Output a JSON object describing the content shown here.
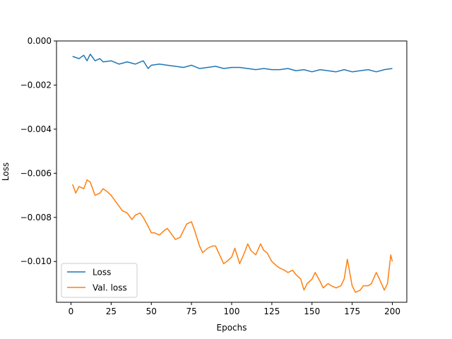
{
  "chart_data": {
    "type": "line",
    "title": "",
    "xlabel": "Epochs",
    "ylabel": "Loss",
    "xlim": [
      -9,
      209
    ],
    "ylim": [
      -0.01185,
      0.0
    ],
    "xticks": [
      0,
      25,
      50,
      75,
      100,
      125,
      150,
      175,
      200
    ],
    "xtick_labels": [
      "0",
      "25",
      "50",
      "75",
      "100",
      "125",
      "150",
      "175",
      "200"
    ],
    "yticks": [
      0.0,
      -0.002,
      -0.004,
      -0.006,
      -0.008,
      -0.01
    ],
    "ytick_labels": [
      "0.000",
      "−0.002",
      "−0.004",
      "−0.006",
      "−0.008",
      "−0.010"
    ],
    "grid": false,
    "legend_position": "lower-left",
    "series": [
      {
        "name": "Loss",
        "color": "#1f77b4",
        "x": [
          1,
          5,
          8,
          10,
          12,
          15,
          18,
          20,
          25,
          30,
          35,
          40,
          45,
          48,
          50,
          55,
          60,
          65,
          70,
          75,
          80,
          85,
          90,
          95,
          100,
          105,
          110,
          115,
          120,
          125,
          130,
          135,
          140,
          145,
          150,
          155,
          160,
          165,
          170,
          175,
          180,
          185,
          190,
          195,
          200
        ],
        "y": [
          -0.0007,
          -0.0008,
          -0.00065,
          -0.0009,
          -0.0006,
          -0.0009,
          -0.0008,
          -0.00095,
          -0.0009,
          -0.00105,
          -0.00095,
          -0.00105,
          -0.0009,
          -0.00125,
          -0.0011,
          -0.00105,
          -0.0011,
          -0.00115,
          -0.0012,
          -0.0011,
          -0.00125,
          -0.0012,
          -0.00115,
          -0.00125,
          -0.0012,
          -0.0012,
          -0.00125,
          -0.0013,
          -0.00125,
          -0.0013,
          -0.0013,
          -0.00125,
          -0.00135,
          -0.0013,
          -0.0014,
          -0.0013,
          -0.00135,
          -0.0014,
          -0.0013,
          -0.0014,
          -0.00135,
          -0.0013,
          -0.0014,
          -0.0013,
          -0.00125
        ]
      },
      {
        "name": "Val. loss",
        "color": "#ff7f0e",
        "x": [
          1,
          3,
          5,
          8,
          10,
          12,
          15,
          18,
          20,
          22,
          25,
          28,
          30,
          32,
          35,
          38,
          40,
          43,
          45,
          48,
          50,
          52,
          55,
          58,
          60,
          62,
          65,
          68,
          70,
          72,
          75,
          77,
          80,
          82,
          85,
          88,
          90,
          95,
          97,
          100,
          102,
          105,
          108,
          110,
          112,
          115,
          118,
          120,
          122,
          125,
          128,
          130,
          133,
          135,
          138,
          140,
          143,
          145,
          147,
          150,
          152,
          155,
          157,
          160,
          162,
          165,
          168,
          170,
          172,
          175,
          177,
          180,
          182,
          185,
          187,
          190,
          192,
          195,
          197,
          199,
          200
        ],
        "y": [
          -0.0065,
          -0.0069,
          -0.0066,
          -0.0067,
          -0.0063,
          -0.0064,
          -0.007,
          -0.0069,
          -0.0067,
          -0.0068,
          -0.007,
          -0.0073,
          -0.0075,
          -0.0077,
          -0.0078,
          -0.0081,
          -0.0079,
          -0.0078,
          -0.008,
          -0.0084,
          -0.0087,
          -0.0087,
          -0.0088,
          -0.0086,
          -0.0085,
          -0.0087,
          -0.009,
          -0.0089,
          -0.0086,
          -0.0083,
          -0.0082,
          -0.0086,
          -0.0093,
          -0.0096,
          -0.0094,
          -0.0093,
          -0.0093,
          -0.0101,
          -0.01,
          -0.0098,
          -0.0094,
          -0.0101,
          -0.0096,
          -0.0092,
          -0.0095,
          -0.0097,
          -0.0092,
          -0.0095,
          -0.0096,
          -0.01,
          -0.0102,
          -0.0103,
          -0.0104,
          -0.0105,
          -0.0104,
          -0.0106,
          -0.0108,
          -0.0113,
          -0.011,
          -0.0108,
          -0.0105,
          -0.0109,
          -0.0112,
          -0.011,
          -0.0111,
          -0.0112,
          -0.0111,
          -0.0108,
          -0.0099,
          -0.0111,
          -0.0114,
          -0.0113,
          -0.0111,
          -0.0111,
          -0.011,
          -0.0105,
          -0.0108,
          -0.0113,
          -0.011,
          -0.0097,
          -0.01
        ]
      }
    ]
  }
}
